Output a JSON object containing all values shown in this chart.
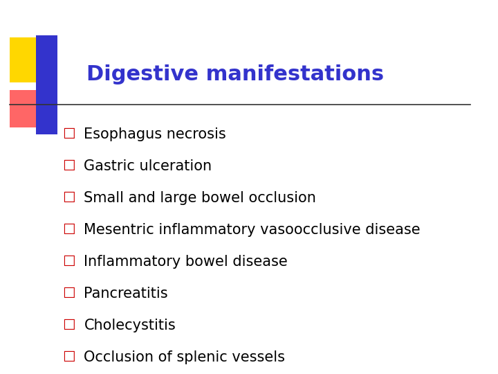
{
  "title": "Digestive manifestations",
  "title_color": "#3333CC",
  "title_fontsize": 22,
  "title_bold": true,
  "bullet_items": [
    "Esophagus necrosis",
    "Gastric ulceration",
    "Small and large bowel occlusion",
    "Mesentric inflammatory vasoocclusive disease",
    "Inflammatory bowel disease",
    "Pancreatitis",
    "Cholecystitis",
    "Occlusion of splenic vessels"
  ],
  "bullet_color": "#CC0000",
  "text_color": "#000000",
  "bullet_fontsize": 15,
  "background_color": "#FFFFFF",
  "line_color": "#333333",
  "decoration_yellow": "#FFD700",
  "decoration_red": "#FF6666",
  "decoration_blue": "#3333CC"
}
